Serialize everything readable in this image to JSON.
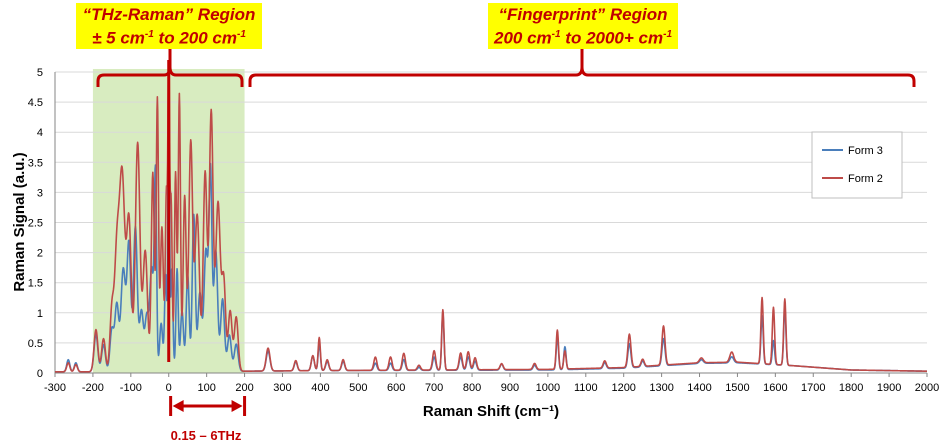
{
  "annotations": {
    "thz_region": {
      "line1": "“THz-Raman” Region",
      "line2_pre": "± 5 cm",
      "line2_sup": "-1",
      "line2_mid": " to 200 cm",
      "line2_sup2": "-1"
    },
    "fingerprint_region": {
      "line1": "“Fingerprint” Region",
      "line2_pre": "200 cm",
      "line2_sup": "-1",
      "line2_mid": " to 2000+ cm",
      "line2_sup2": "-1"
    },
    "thz_range_label": "0.15 – 6THz"
  },
  "colors": {
    "form3": "#4a7ebb",
    "form2": "#be4b48",
    "annotation_red": "#c00000",
    "annotation_bg": "#ffff00",
    "thz_shade": "#d8ecc0"
  },
  "chart_data": {
    "type": "line",
    "title": "",
    "xlabel": "Raman Shift (cm⁻¹)",
    "ylabel": "Raman Signal (a.u.)",
    "xlim": [
      -300,
      2000
    ],
    "ylim": [
      0,
      5
    ],
    "xticks": [
      -300,
      -200,
      -100,
      0,
      100,
      200,
      300,
      400,
      500,
      600,
      700,
      800,
      900,
      1000,
      1100,
      1200,
      1300,
      1400,
      1500,
      1600,
      1700,
      1800,
      1900,
      2000
    ],
    "yticks": [
      0,
      0.5,
      1,
      1.5,
      2,
      2.5,
      3,
      3.5,
      4,
      4.5,
      5
    ],
    "grid": "horizontal",
    "legend": "right",
    "shaded_region": [
      -200,
      200
    ],
    "series": [
      {
        "name": "Form 3",
        "baseline": [
          [
            -300,
            0.02
          ],
          [
            -200,
            0.02
          ],
          [
            200,
            0.03
          ],
          [
            400,
            0.04
          ],
          [
            1000,
            0.05
          ],
          [
            1200,
            0.08
          ],
          [
            1300,
            0.12
          ],
          [
            1400,
            0.16
          ],
          [
            1500,
            0.17
          ],
          [
            1650,
            0.12
          ],
          [
            1800,
            0.05
          ],
          [
            2000,
            0.03
          ]
        ],
        "peaks": [
          [
            -265,
            0.2,
            4
          ],
          [
            -245,
            0.15,
            4
          ],
          [
            -192,
            0.62,
            5
          ],
          [
            -172,
            0.45,
            5
          ],
          [
            -150,
            0.7,
            5
          ],
          [
            -137,
            1.1,
            5
          ],
          [
            -120,
            1.7,
            6
          ],
          [
            -105,
            2.1,
            5
          ],
          [
            -88,
            2.4,
            5
          ],
          [
            -72,
            1.0,
            5
          ],
          [
            -58,
            0.9,
            5
          ],
          [
            -45,
            1.7,
            5
          ],
          [
            -35,
            3.2,
            3
          ],
          [
            -20,
            0.8,
            4
          ],
          [
            -8,
            1.6,
            3
          ],
          [
            0,
            4.7,
            2
          ],
          [
            8,
            1.7,
            3
          ],
          [
            22,
            1.7,
            3
          ],
          [
            35,
            1.0,
            4
          ],
          [
            50,
            1.6,
            4
          ],
          [
            66,
            2.6,
            4
          ],
          [
            82,
            1.3,
            5
          ],
          [
            98,
            2.0,
            5
          ],
          [
            110,
            3.3,
            4
          ],
          [
            124,
            2.0,
            5
          ],
          [
            142,
            1.2,
            5
          ],
          [
            160,
            0.6,
            5
          ],
          [
            178,
            0.45,
            5
          ],
          [
            262,
            0.33,
            5
          ],
          [
            335,
            0.15,
            4
          ],
          [
            380,
            0.24,
            4
          ],
          [
            397,
            0.45,
            3
          ],
          [
            418,
            0.15,
            4
          ],
          [
            460,
            0.15,
            4
          ],
          [
            545,
            0.12,
            4
          ],
          [
            585,
            0.12,
            4
          ],
          [
            620,
            0.18,
            4
          ],
          [
            660,
            0.05,
            4
          ],
          [
            700,
            0.22,
            4
          ],
          [
            723,
            0.95,
            3
          ],
          [
            770,
            0.22,
            4
          ],
          [
            790,
            0.22,
            4
          ],
          [
            808,
            0.15,
            4
          ],
          [
            878,
            0.1,
            4
          ],
          [
            965,
            0.08,
            4
          ],
          [
            1025,
            0.55,
            3
          ],
          [
            1045,
            0.38,
            3
          ],
          [
            1150,
            0.1,
            4
          ],
          [
            1215,
            0.4,
            4
          ],
          [
            1250,
            0.1,
            4
          ],
          [
            1305,
            0.45,
            4
          ],
          [
            1405,
            0.06,
            5
          ],
          [
            1485,
            0.1,
            5
          ],
          [
            1565,
            0.8,
            3
          ],
          [
            1595,
            0.4,
            3
          ],
          [
            1625,
            0.95,
            3
          ]
        ]
      },
      {
        "name": "Form 2",
        "baseline": [
          [
            -300,
            0.02
          ],
          [
            -200,
            0.02
          ],
          [
            200,
            0.03
          ],
          [
            400,
            0.04
          ],
          [
            1000,
            0.06
          ],
          [
            1200,
            0.09
          ],
          [
            1300,
            0.13
          ],
          [
            1400,
            0.17
          ],
          [
            1500,
            0.18
          ],
          [
            1650,
            0.12
          ],
          [
            1800,
            0.05
          ],
          [
            2000,
            0.03
          ]
        ],
        "peaks": [
          [
            -265,
            0.15,
            4
          ],
          [
            -245,
            0.12,
            4
          ],
          [
            -192,
            0.7,
            5
          ],
          [
            -172,
            0.55,
            5
          ],
          [
            -150,
            1.0,
            5
          ],
          [
            -137,
            1.9,
            6
          ],
          [
            -123,
            3.25,
            7
          ],
          [
            -105,
            2.5,
            6
          ],
          [
            -82,
            3.8,
            6
          ],
          [
            -62,
            2.0,
            6
          ],
          [
            -42,
            3.3,
            4
          ],
          [
            -30,
            4.5,
            3
          ],
          [
            -18,
            2.4,
            4
          ],
          [
            -6,
            3.0,
            3
          ],
          [
            0,
            5.0,
            2
          ],
          [
            6,
            2.9,
            3
          ],
          [
            18,
            3.3,
            3
          ],
          [
            28,
            4.6,
            3
          ],
          [
            42,
            2.9,
            4
          ],
          [
            58,
            3.8,
            5
          ],
          [
            75,
            2.6,
            6
          ],
          [
            96,
            3.3,
            5
          ],
          [
            112,
            4.3,
            5
          ],
          [
            130,
            2.8,
            6
          ],
          [
            145,
            1.5,
            5
          ],
          [
            162,
            1.0,
            5
          ],
          [
            178,
            0.9,
            5
          ],
          [
            262,
            0.38,
            5
          ],
          [
            335,
            0.17,
            4
          ],
          [
            380,
            0.25,
            4
          ],
          [
            397,
            0.55,
            3
          ],
          [
            418,
            0.18,
            4
          ],
          [
            460,
            0.18,
            4
          ],
          [
            545,
            0.22,
            4
          ],
          [
            585,
            0.22,
            4
          ],
          [
            620,
            0.28,
            4
          ],
          [
            660,
            0.08,
            4
          ],
          [
            700,
            0.32,
            4
          ],
          [
            723,
            1.0,
            3
          ],
          [
            770,
            0.28,
            4
          ],
          [
            790,
            0.3,
            4
          ],
          [
            808,
            0.2,
            4
          ],
          [
            878,
            0.1,
            4
          ],
          [
            965,
            0.1,
            4
          ],
          [
            1025,
            0.65,
            3
          ],
          [
            1045,
            0.3,
            3
          ],
          [
            1150,
            0.12,
            4
          ],
          [
            1215,
            0.55,
            4
          ],
          [
            1250,
            0.12,
            4
          ],
          [
            1305,
            0.65,
            4
          ],
          [
            1405,
            0.08,
            5
          ],
          [
            1485,
            0.17,
            5
          ],
          [
            1565,
            1.1,
            3
          ],
          [
            1595,
            0.95,
            3
          ],
          [
            1625,
            1.1,
            3
          ]
        ]
      }
    ]
  }
}
